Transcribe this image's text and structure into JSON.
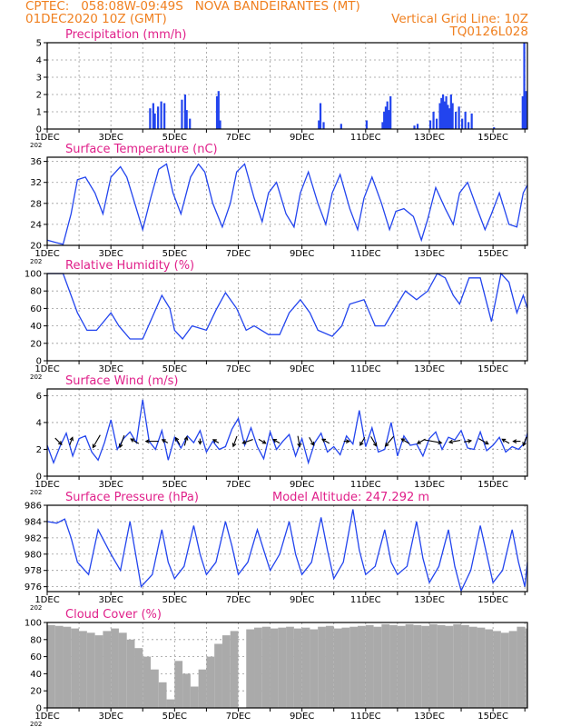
{
  "header": {
    "line1_left": "CPTEC:   058:08W-09:49S   NOVA BANDEIRANTES (MT)",
    "line2_left": "01DEC2020 10Z (GMT)",
    "line2_right": "Vertical Grid Line: 10Z",
    "line3_right": "TQ0126L028"
  },
  "colors": {
    "header": "#f08020",
    "title": "#e0208a",
    "line": "#2244ee",
    "bar": "#2244ee",
    "cloud": "#aaaaaa",
    "grid": "#999999"
  },
  "chart_data": [
    {
      "type": "bar",
      "title": "Precipitation (mm/h)",
      "ylim": [
        0,
        5
      ],
      "yticks": [
        "0",
        "1",
        "2",
        "3",
        "4",
        "5"
      ],
      "xlim": [
        0,
        15.08
      ],
      "xticks": [
        "1DEC",
        "3DEC",
        "5DEC",
        "7DEC",
        "9DEC",
        "11DEC",
        "13DEC",
        "15DEC"
      ],
      "year_label": "202",
      "x": [
        3.2,
        3.3,
        3.35,
        3.45,
        3.55,
        3.65,
        4.2,
        4.3,
        4.35,
        4.45,
        5.3,
        5.35,
        5.4,
        8.5,
        8.55,
        8.65,
        9.2,
        10.0,
        10.5,
        10.55,
        10.6,
        10.65,
        10.7,
        10.75,
        11.5,
        11.6,
        12.0,
        12.1,
        12.2,
        12.3,
        12.35,
        12.4,
        12.45,
        12.5,
        12.55,
        12.6,
        12.65,
        12.7,
        12.8,
        12.9,
        13.0,
        13.1,
        13.2,
        13.3,
        14.0,
        14.9,
        14.95,
        15.0
      ],
      "values": [
        1.2,
        1.5,
        0.9,
        1.3,
        1.6,
        1.5,
        1.7,
        2.0,
        1.1,
        0.6,
        1.9,
        2.2,
        0.5,
        0.5,
        1.5,
        0.4,
        0.3,
        0.5,
        0.4,
        1.0,
        1.3,
        1.6,
        1.1,
        1.9,
        0.2,
        0.3,
        0.5,
        1.0,
        0.6,
        1.5,
        1.8,
        2.0,
        1.6,
        1.9,
        1.4,
        1.2,
        2.0,
        1.5,
        1.0,
        1.3,
        0.6,
        1.0,
        0.4,
        0.9,
        0.1,
        1.9,
        5.0,
        2.2
      ]
    },
    {
      "type": "line",
      "title": "Surface Temperature (nC)",
      "ylim": [
        20,
        36.8
      ],
      "yticks": [
        "20",
        "24",
        "28",
        "32",
        "36"
      ],
      "xlim": [
        0,
        15.08
      ],
      "xticks": [
        "1DEC",
        "3DEC",
        "5DEC",
        "7DEC",
        "9DEC",
        "11DEC",
        "13DEC",
        "15DEC"
      ],
      "year_label": "202",
      "x": [
        0,
        0.3,
        0.5,
        0.75,
        0.95,
        1.2,
        1.5,
        1.75,
        2.0,
        2.3,
        2.5,
        2.75,
        3.0,
        3.25,
        3.5,
        3.75,
        3.95,
        4.2,
        4.5,
        4.75,
        4.95,
        5.2,
        5.5,
        5.75,
        5.95,
        6.2,
        6.5,
        6.75,
        6.95,
        7.2,
        7.5,
        7.75,
        7.95,
        8.2,
        8.5,
        8.75,
        8.95,
        9.2,
        9.5,
        9.75,
        9.95,
        10.2,
        10.5,
        10.75,
        10.95,
        11.2,
        11.5,
        11.75,
        11.95,
        12.2,
        12.5,
        12.75,
        12.95,
        13.2,
        13.5,
        13.75,
        13.95,
        14.2,
        14.5,
        14.75,
        14.95,
        15.08
      ],
      "values": [
        21,
        20.5,
        20.2,
        26,
        32.5,
        33,
        30,
        26,
        33,
        35,
        33,
        28,
        23,
        29,
        34.5,
        35.5,
        30,
        26,
        33,
        35.5,
        34,
        28,
        23.5,
        28,
        34,
        35.5,
        29,
        24.5,
        30,
        32,
        26,
        23.5,
        30,
        34,
        28,
        24,
        30,
        33.5,
        27,
        23,
        29,
        33,
        28,
        23,
        26.5,
        27,
        25.5,
        21,
        25,
        31,
        27,
        24,
        30,
        32,
        27,
        23,
        26,
        30,
        24,
        23.5,
        30,
        31.5
      ]
    },
    {
      "type": "line",
      "title": "Relative Humidity (%)",
      "ylim": [
        0,
        100
      ],
      "yticks": [
        "0",
        "20",
        "40",
        "60",
        "80",
        "100"
      ],
      "xlim": [
        0,
        15.08
      ],
      "xticks": [
        "1DEC",
        "3DEC",
        "5DEC",
        "7DEC",
        "9DEC",
        "11DEC",
        "13DEC",
        "15DEC"
      ],
      "year_label": "202",
      "x": [
        0,
        0.5,
        0.95,
        1.25,
        1.55,
        2.0,
        2.25,
        2.6,
        3.0,
        3.3,
        3.6,
        3.85,
        4.0,
        4.25,
        4.55,
        5.0,
        5.3,
        5.6,
        5.95,
        6.25,
        6.5,
        6.95,
        7.3,
        7.6,
        7.95,
        8.25,
        8.5,
        8.95,
        9.25,
        9.5,
        9.95,
        10.3,
        10.6,
        10.95,
        11.25,
        11.6,
        11.95,
        12.25,
        12.5,
        12.75,
        12.95,
        13.25,
        13.6,
        13.95,
        14.25,
        14.5,
        14.75,
        14.95,
        15.08
      ],
      "values": [
        100,
        100,
        55,
        35,
        35,
        55,
        40,
        25,
        25,
        50,
        75,
        60,
        35,
        25,
        40,
        35,
        58,
        78,
        60,
        35,
        40,
        30,
        30,
        55,
        70,
        55,
        35,
        28,
        40,
        65,
        70,
        40,
        40,
        62,
        80,
        70,
        80,
        100,
        95,
        75,
        65,
        95,
        95,
        45,
        100,
        90,
        55,
        75,
        60
      ]
    },
    {
      "type": "line",
      "title": "Surface Wind (m/s)",
      "ylim": [
        0,
        6.5
      ],
      "yticks": [
        "0",
        "2",
        "4",
        "6"
      ],
      "xlim": [
        0,
        15.08
      ],
      "xticks": [
        "1DEC",
        "3DEC",
        "5DEC",
        "7DEC",
        "9DEC",
        "11DEC",
        "13DEC",
        "15DEC"
      ],
      "year_label": "202",
      "x": [
        0,
        0.2,
        0.4,
        0.6,
        0.8,
        1.0,
        1.2,
        1.4,
        1.6,
        1.8,
        2.0,
        2.2,
        2.4,
        2.6,
        2.8,
        3.0,
        3.2,
        3.4,
        3.6,
        3.8,
        4.0,
        4.2,
        4.4,
        4.6,
        4.8,
        5.0,
        5.2,
        5.4,
        5.6,
        5.8,
        6.0,
        6.2,
        6.4,
        6.6,
        6.8,
        7.0,
        7.2,
        7.4,
        7.6,
        7.8,
        8.0,
        8.2,
        8.4,
        8.6,
        8.8,
        9.0,
        9.2,
        9.4,
        9.6,
        9.8,
        10.0,
        10.2,
        10.4,
        10.6,
        10.8,
        11.0,
        11.2,
        11.4,
        11.6,
        11.8,
        12.0,
        12.2,
        12.4,
        12.6,
        12.8,
        13.0,
        13.2,
        13.4,
        13.6,
        13.8,
        14.0,
        14.2,
        14.4,
        14.6,
        14.8,
        15.0,
        15.08
      ],
      "values": [
        2.3,
        1.0,
        2.2,
        3.2,
        1.5,
        2.8,
        3.0,
        1.8,
        1.2,
        2.5,
        4.2,
        2.0,
        2.8,
        3.3,
        2.5,
        5.7,
        2.6,
        2.0,
        3.4,
        1.2,
        2.9,
        2.1,
        3.0,
        2.5,
        3.4,
        1.8,
        2.6,
        2.0,
        2.2,
        3.5,
        4.3,
        2.3,
        3.6,
        2.2,
        1.3,
        3.3,
        2.0,
        2.6,
        3.1,
        1.5,
        2.8,
        1.0,
        2.5,
        3.2,
        1.8,
        2.2,
        1.6,
        3.0,
        2.4,
        4.9,
        2.2,
        3.6,
        1.8,
        2.0,
        4.0,
        1.5,
        3.0,
        2.3,
        2.4,
        1.5,
        2.8,
        3.3,
        2.0,
        2.9,
        2.7,
        3.4,
        2.1,
        2.0,
        3.3,
        1.9,
        2.3,
        2.9,
        1.8,
        2.2,
        2.0,
        2.5,
        3.2
      ]
    },
    {
      "type": "line",
      "title": "Surface Pressure (hPa)",
      "subtitle": "Model Altitude: 247.292 m",
      "ylim": [
        975.4,
        986
      ],
      "yticks": [
        "976",
        "978",
        "980",
        "982",
        "984",
        "986"
      ],
      "xlim": [
        0,
        15.08
      ],
      "xticks": [
        "1DEC",
        "3DEC",
        "5DEC",
        "7DEC",
        "9DEC",
        "11DEC",
        "13DEC",
        "15DEC"
      ],
      "year_label": "202",
      "x": [
        0,
        0.3,
        0.55,
        0.75,
        0.95,
        1.3,
        1.6,
        1.8,
        2.0,
        2.3,
        2.6,
        2.8,
        2.95,
        3.3,
        3.6,
        3.8,
        4.0,
        4.3,
        4.6,
        4.8,
        5.0,
        5.3,
        5.6,
        5.8,
        6.0,
        6.3,
        6.6,
        6.8,
        7.0,
        7.3,
        7.6,
        7.8,
        8.0,
        8.3,
        8.6,
        8.8,
        9.0,
        9.3,
        9.6,
        9.8,
        10.0,
        10.3,
        10.6,
        10.8,
        11.0,
        11.3,
        11.6,
        11.8,
        12.0,
        12.3,
        12.6,
        12.8,
        13.0,
        13.3,
        13.6,
        13.8,
        14.0,
        14.3,
        14.6,
        14.8,
        15.0,
        15.08
      ],
      "values": [
        984,
        983.8,
        984.3,
        982,
        979,
        977.5,
        983,
        981.5,
        980,
        978,
        984,
        979.5,
        976,
        977.5,
        983,
        979,
        977,
        978.5,
        983.5,
        980,
        977.5,
        979,
        984,
        981,
        977.5,
        979,
        983,
        980.5,
        978,
        980,
        984,
        980,
        977.5,
        979,
        984.5,
        980.5,
        977,
        979,
        985.5,
        980.5,
        977.5,
        978.5,
        983,
        979,
        977.5,
        978.5,
        984,
        979.5,
        976.5,
        978.5,
        983,
        978.5,
        975.5,
        978,
        983.5,
        980,
        976.5,
        978,
        983,
        979,
        976,
        979
      ]
    },
    {
      "type": "bar",
      "title": "Cloud Cover (%)",
      "ylim": [
        0,
        100
      ],
      "yticks": [
        "0",
        "20",
        "40",
        "60",
        "80",
        "100"
      ],
      "xlim": [
        0,
        15.08
      ],
      "xticks": [
        "1DEC",
        "3DEC",
        "5DEC",
        "7DEC",
        "9DEC",
        "11DEC",
        "13DEC",
        "15DEC"
      ],
      "year_label": "202",
      "x": [
        0.0,
        0.25,
        0.5,
        0.75,
        1.0,
        1.25,
        1.5,
        1.75,
        2.0,
        2.25,
        2.5,
        2.75,
        3.0,
        3.25,
        3.5,
        3.75,
        4.0,
        4.25,
        4.5,
        4.75,
        5.0,
        5.25,
        5.5,
        5.75,
        6.0,
        6.25,
        6.5,
        6.75,
        7.0,
        7.25,
        7.5,
        7.75,
        8.0,
        8.25,
        8.5,
        8.75,
        9.0,
        9.25,
        9.5,
        9.75,
        10.0,
        10.25,
        10.5,
        10.75,
        11.0,
        11.25,
        11.5,
        11.75,
        12.0,
        12.25,
        12.5,
        12.75,
        13.0,
        13.25,
        13.5,
        13.75,
        14.0,
        14.25,
        14.5,
        14.75,
        15.0
      ],
      "values": [
        97,
        96,
        95,
        93,
        90,
        88,
        85,
        90,
        93,
        88,
        80,
        70,
        60,
        45,
        30,
        10,
        55,
        40,
        25,
        45,
        60,
        75,
        85,
        90,
        0,
        92,
        94,
        95,
        93,
        94,
        95,
        93,
        94,
        92,
        95,
        96,
        93,
        94,
        95,
        96,
        97,
        95,
        98,
        97,
        96,
        98,
        97,
        96,
        98,
        97,
        96,
        98,
        97,
        95,
        94,
        92,
        90,
        88,
        90,
        95,
        93
      ]
    }
  ],
  "wind_arrows": [
    {
      "x": 0.35,
      "dir": 135,
      "len": 10
    },
    {
      "x": 0.75,
      "dir": 20,
      "len": 9
    },
    {
      "x": 1.55,
      "dir": 210,
      "len": 16
    },
    {
      "x": 2.35,
      "dir": 200,
      "len": 14
    },
    {
      "x": 2.75,
      "dir": 300,
      "len": 10
    },
    {
      "x": 3.3,
      "dir": 270,
      "len": 14
    },
    {
      "x": 3.7,
      "dir": 300,
      "len": 7
    },
    {
      "x": 4.1,
      "dir": 330,
      "len": 9
    },
    {
      "x": 4.35,
      "dir": 15,
      "len": 10
    },
    {
      "x": 4.8,
      "dir": 180,
      "len": 6
    },
    {
      "x": 5.3,
      "dir": 300,
      "len": 7
    },
    {
      "x": 5.9,
      "dir": 200,
      "len": 12
    },
    {
      "x": 6.3,
      "dir": 250,
      "len": 12
    },
    {
      "x": 6.75,
      "dir": 120,
      "len": 9
    },
    {
      "x": 7.2,
      "dir": 300,
      "len": 8
    },
    {
      "x": 7.9,
      "dir": 170,
      "len": 12
    },
    {
      "x": 8.3,
      "dir": 150,
      "len": 10
    },
    {
      "x": 8.75,
      "dir": 300,
      "len": 9
    },
    {
      "x": 9.4,
      "dir": 90,
      "len": 6
    },
    {
      "x": 9.9,
      "dir": 210,
      "len": 10
    },
    {
      "x": 10.25,
      "dir": 150,
      "len": 12
    },
    {
      "x": 10.75,
      "dir": 220,
      "len": 14
    },
    {
      "x": 11.25,
      "dir": 300,
      "len": 10
    },
    {
      "x": 11.75,
      "dir": 240,
      "len": 10
    },
    {
      "x": 12.1,
      "dir": 100,
      "len": 20
    },
    {
      "x": 12.8,
      "dir": 260,
      "len": 12
    },
    {
      "x": 13.2,
      "dir": 80,
      "len": 8
    },
    {
      "x": 13.7,
      "dir": 120,
      "len": 12
    },
    {
      "x": 14.4,
      "dir": 300,
      "len": 9
    },
    {
      "x": 14.75,
      "dir": 270,
      "len": 8
    },
    {
      "x": 15.0,
      "dir": 200,
      "len": 10
    }
  ]
}
